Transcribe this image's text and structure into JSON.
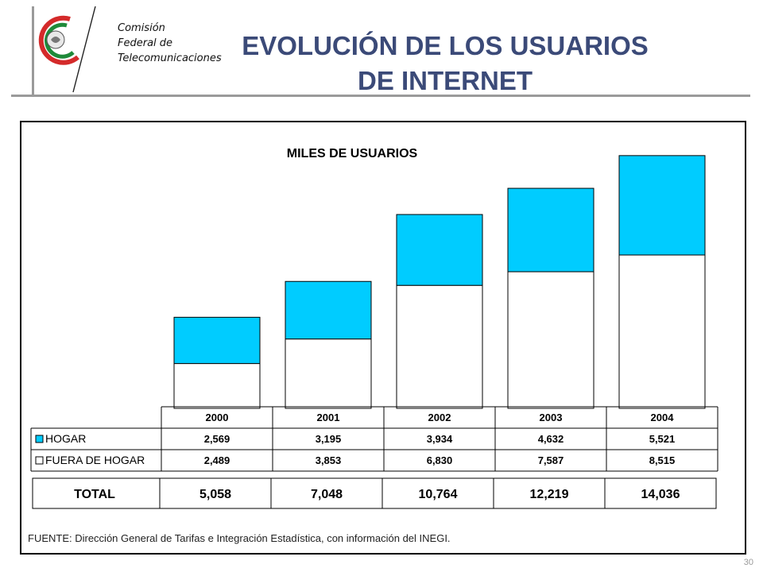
{
  "header": {
    "logo_lines": [
      "Comisión",
      "Federal de",
      "Telecomunicaciones"
    ],
    "title_line1": "EVOLUCIÓN DE LOS USUARIOS",
    "title_line2": "DE INTERNET"
  },
  "chart_data": {
    "type": "bar",
    "stacked": true,
    "title": "MILES DE USUARIOS",
    "categories": [
      "2000",
      "2001",
      "2002",
      "2003",
      "2004"
    ],
    "series": [
      {
        "name": "HOGAR",
        "values": [
          2569,
          3195,
          3934,
          4632,
          5521
        ],
        "color": "#00ccff"
      },
      {
        "name": "FUERA DE HOGAR",
        "values": [
          2489,
          3853,
          6830,
          7587,
          8515
        ],
        "color": "#ffffff"
      }
    ],
    "totals_label": "TOTAL",
    "totals": [
      5058,
      7048,
      10764,
      12219,
      14036
    ],
    "ylim": [
      0,
      15000
    ],
    "grid": false,
    "legend_position": "table-left"
  },
  "table": {
    "header": [
      "2000",
      "2001",
      "2002",
      "2003",
      "2004"
    ],
    "rows": [
      {
        "label": "HOGAR",
        "values": [
          "2,569",
          "3,195",
          "3,934",
          "4,632",
          "5,521"
        ]
      },
      {
        "label": "FUERA DE HOGAR",
        "values": [
          "2,489",
          "3,853",
          "6,830",
          "7,587",
          "8,515"
        ]
      }
    ],
    "total_label": "TOTAL",
    "total_values": [
      "5,058",
      "7,048",
      "10,764",
      "12,219",
      "14,036"
    ]
  },
  "footer": {
    "source": "FUENTE:  Dirección General de Tarifas e Integración Estadística, con información del INEGI.",
    "page_number": "30"
  }
}
